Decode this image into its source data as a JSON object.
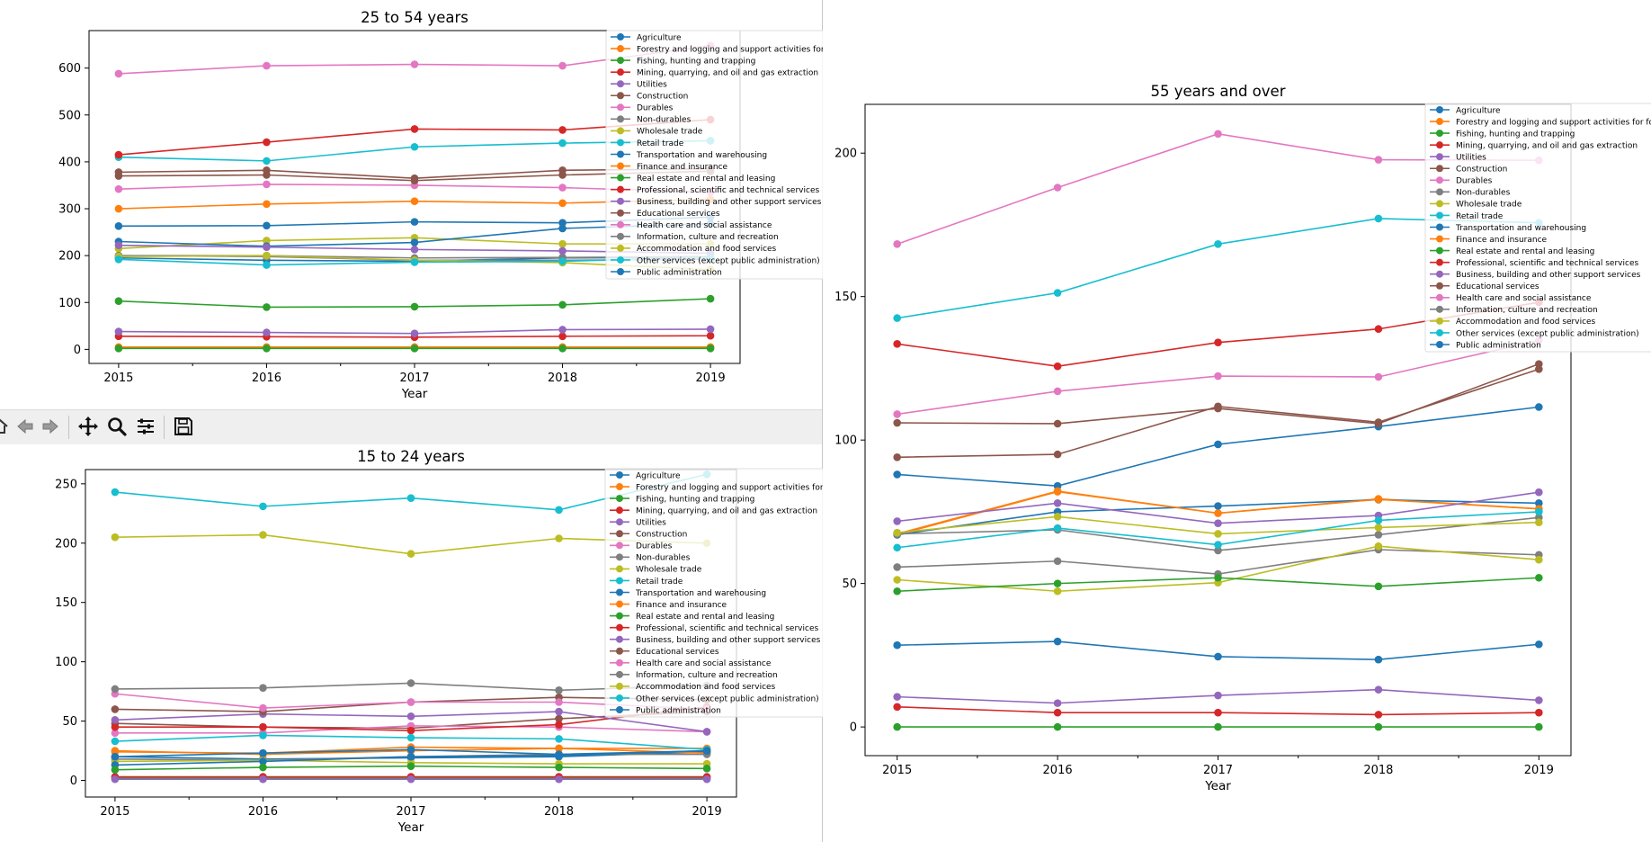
{
  "toolbar": {
    "buttons": [
      {
        "name": "home-button",
        "icon": "home-icon"
      },
      {
        "name": "back-button",
        "icon": "arrow-left-icon"
      },
      {
        "name": "forward-button",
        "icon": "arrow-right-icon"
      },
      {
        "name": "pan-button",
        "icon": "move-icon"
      },
      {
        "name": "zoom-button",
        "icon": "magnifier-icon"
      },
      {
        "name": "configure-subplots-button",
        "icon": "sliders-icon"
      },
      {
        "name": "save-button",
        "icon": "save-icon"
      }
    ]
  },
  "chart_data": [
    {
      "type": "line",
      "title": "25 to 54 years",
      "xlabel": "Year",
      "ylabel": "",
      "x": [
        2015,
        2016,
        2017,
        2018,
        2019
      ],
      "ylim": [
        -30,
        680
      ],
      "yticks": [
        0,
        100,
        200,
        300,
        400,
        500,
        600
      ],
      "grid": false,
      "legend_position": "top-right",
      "series": [
        {
          "name": "Agriculture",
          "color": "#1f77b4",
          "values": [
            195,
            190,
            188,
            195,
            196
          ]
        },
        {
          "name": "Forestry and logging and support activities for forestry",
          "color": "#ff7f0e",
          "values": [
            5,
            5,
            5,
            5,
            5
          ]
        },
        {
          "name": "Fishing, hunting and trapping",
          "color": "#2ca02c",
          "values": [
            2,
            2,
            2,
            2,
            2
          ]
        },
        {
          "name": "Mining, quarrying, and oil and gas extraction",
          "color": "#d62728",
          "values": [
            28,
            27,
            26,
            28,
            29
          ]
        },
        {
          "name": "Utilities",
          "color": "#9467bd",
          "values": [
            38,
            36,
            34,
            42,
            43
          ]
        },
        {
          "name": "Construction",
          "color": "#8c564b",
          "values": [
            378,
            382,
            365,
            382,
            385
          ]
        },
        {
          "name": "Durables",
          "color": "#e377c2",
          "values": [
            342,
            352,
            350,
            345,
            335
          ]
        },
        {
          "name": "Non-durables",
          "color": "#7f7f7f",
          "values": [
            200,
            200,
            195,
            196,
            198
          ]
        },
        {
          "name": "Wholesale trade",
          "color": "#bcbd22",
          "values": [
            215,
            232,
            238,
            225,
            225
          ]
        },
        {
          "name": "Retail trade",
          "color": "#17becf",
          "values": [
            410,
            402,
            432,
            440,
            445
          ]
        },
        {
          "name": "Transportation and warehousing",
          "color": "#1f77b4",
          "values": [
            230,
            220,
            228,
            258,
            268
          ]
        },
        {
          "name": "Finance and insurance",
          "color": "#ff7f0e",
          "values": [
            300,
            310,
            316,
            312,
            320
          ]
        },
        {
          "name": "Real estate and rental and leasing",
          "color": "#2ca02c",
          "values": [
            103,
            90,
            91,
            95,
            108
          ]
        },
        {
          "name": "Professional, scientific and technical services",
          "color": "#d62728",
          "values": [
            415,
            442,
            470,
            468,
            490
          ]
        },
        {
          "name": "Business, building and other support services",
          "color": "#9467bd",
          "values": [
            222,
            218,
            213,
            210,
            205
          ]
        },
        {
          "name": "Educational services",
          "color": "#8c564b",
          "values": [
            370,
            372,
            360,
            372,
            380
          ]
        },
        {
          "name": "Health care and social assistance",
          "color": "#e377c2",
          "values": [
            588,
            605,
            608,
            605,
            648
          ]
        },
        {
          "name": "Information, culture and recreation",
          "color": "#7f7f7f",
          "values": [
            200,
            198,
            190,
            190,
            192
          ]
        },
        {
          "name": "Accommodation and food services",
          "color": "#bcbd22",
          "values": [
            198,
            200,
            190,
            185,
            170
          ]
        },
        {
          "name": "Other services (except public administration)",
          "color": "#17becf",
          "values": [
            192,
            180,
            186,
            188,
            196
          ]
        },
        {
          "name": "Public administration",
          "color": "#1f77b4",
          "values": [
            263,
            264,
            272,
            270,
            282
          ]
        }
      ]
    },
    {
      "type": "line",
      "title": "15 to 24 years",
      "xlabel": "Year",
      "ylabel": "",
      "x": [
        2015,
        2016,
        2017,
        2018,
        2019
      ],
      "ylim": [
        -14,
        262
      ],
      "yticks": [
        0,
        50,
        100,
        150,
        200,
        250
      ],
      "grid": false,
      "legend_position": "top-right",
      "series": [
        {
          "name": "Agriculture",
          "color": "#1f77b4",
          "values": [
            20,
            18,
            19,
            20,
            24
          ]
        },
        {
          "name": "Forestry and logging and support activities for forestry",
          "color": "#ff7f0e",
          "values": [
            25,
            22,
            25,
            27,
            23
          ]
        },
        {
          "name": "Fishing, hunting and trapping",
          "color": "#2ca02c",
          "values": [
            2,
            2,
            2,
            2,
            2
          ]
        },
        {
          "name": "Mining, quarrying, and oil and gas extraction",
          "color": "#d62728",
          "values": [
            3,
            3,
            3,
            3,
            3
          ]
        },
        {
          "name": "Utilities",
          "color": "#9467bd",
          "values": [
            1,
            1,
            1,
            1,
            1
          ]
        },
        {
          "name": "Construction",
          "color": "#8c564b",
          "values": [
            48,
            45,
            44,
            52,
            58
          ]
        },
        {
          "name": "Durables",
          "color": "#e377c2",
          "values": [
            40,
            40,
            46,
            45,
            41
          ]
        },
        {
          "name": "Non-durables",
          "color": "#7f7f7f",
          "values": [
            18,
            17,
            20,
            22,
            22
          ]
        },
        {
          "name": "Wholesale trade",
          "color": "#bcbd22",
          "values": [
            16,
            17,
            15,
            14,
            14
          ]
        },
        {
          "name": "Retail trade",
          "color": "#17becf",
          "values": [
            243,
            231,
            238,
            228,
            258
          ]
        },
        {
          "name": "Transportation and warehousing",
          "color": "#1f77b4",
          "values": [
            13,
            16,
            20,
            21,
            25
          ]
        },
        {
          "name": "Finance and insurance",
          "color": "#ff7f0e",
          "values": [
            24,
            23,
            28,
            27,
            27
          ]
        },
        {
          "name": "Real estate and rental and leasing",
          "color": "#2ca02c",
          "values": [
            9,
            11,
            12,
            11,
            10
          ]
        },
        {
          "name": "Professional, scientific and technical services",
          "color": "#d62728",
          "values": [
            45,
            45,
            42,
            47,
            62
          ]
        },
        {
          "name": "Business, building and other support services",
          "color": "#9467bd",
          "values": [
            51,
            56,
            54,
            58,
            41
          ]
        },
        {
          "name": "Educational services",
          "color": "#8c564b",
          "values": [
            60,
            58,
            66,
            70,
            68
          ]
        },
        {
          "name": "Health care and social assistance",
          "color": "#e377c2",
          "values": [
            73,
            61,
            66,
            66,
            60
          ]
        },
        {
          "name": "Information, culture and recreation",
          "color": "#7f7f7f",
          "values": [
            77,
            78,
            82,
            76,
            80
          ]
        },
        {
          "name": "Accommodation and food services",
          "color": "#bcbd22",
          "values": [
            205,
            207,
            191,
            204,
            200
          ]
        },
        {
          "name": "Other services (except public administration)",
          "color": "#17becf",
          "values": [
            33,
            38,
            36,
            35,
            26
          ]
        },
        {
          "name": "Public administration",
          "color": "#1f77b4",
          "values": [
            20,
            23,
            26,
            22,
            25
          ]
        }
      ]
    },
    {
      "type": "line",
      "title": "55 years and over",
      "xlabel": "Year",
      "ylabel": "",
      "x": [
        2015,
        2016,
        2017,
        2018,
        2019
      ],
      "ylim": [
        -10,
        217
      ],
      "yticks": [
        0,
        50,
        100,
        150,
        200
      ],
      "grid": false,
      "legend_position": "top-right",
      "series": [
        {
          "name": "Agriculture",
          "color": "#1f77b4",
          "values": [
            88,
            84,
            98.5,
            104.7,
            111.5
          ]
        },
        {
          "name": "Forestry and logging and support activities for forestry",
          "color": "#ff7f0e",
          "values": [
            67,
            82,
            74.5,
            79.5,
            76
          ]
        },
        {
          "name": "Fishing, hunting and trapping",
          "color": "#2ca02c",
          "values": [
            0,
            0,
            0,
            0,
            0
          ]
        },
        {
          "name": "Mining, quarrying, and oil and gas extraction",
          "color": "#d62728",
          "values": [
            7,
            5,
            5,
            4.3,
            5
          ]
        },
        {
          "name": "Utilities",
          "color": "#9467bd",
          "values": [
            10.5,
            8.3,
            11,
            13,
            9.3
          ]
        },
        {
          "name": "Construction",
          "color": "#8c564b",
          "values": [
            106,
            105.7,
            111,
            105.7,
            126.5
          ]
        },
        {
          "name": "Durables",
          "color": "#e377c2",
          "values": [
            109,
            117,
            122.3,
            122,
            134.7
          ]
        },
        {
          "name": "Non-durables",
          "color": "#7f7f7f",
          "values": [
            55.7,
            57.8,
            53.3,
            61.8,
            60
          ]
        },
        {
          "name": "Wholesale trade",
          "color": "#bcbd22",
          "values": [
            51.3,
            47.3,
            50.3,
            63,
            58.3
          ]
        },
        {
          "name": "Retail trade",
          "color": "#17becf",
          "values": [
            142.5,
            151.3,
            168.3,
            177.2,
            175.7
          ]
        },
        {
          "name": "Transportation and warehousing",
          "color": "#1f77b4",
          "values": [
            67,
            75,
            77,
            79.2,
            78
          ]
        },
        {
          "name": "Finance and insurance",
          "color": "#ff7f0e",
          "values": [
            67.3,
            82.2,
            74.5,
            79.3,
            76
          ]
        },
        {
          "name": "Real estate and rental and leasing",
          "color": "#2ca02c",
          "values": [
            47.3,
            50,
            52,
            49,
            52
          ]
        },
        {
          "name": "Professional, scientific and technical services",
          "color": "#d62728",
          "values": [
            133.5,
            125.7,
            134,
            138.7,
            148
          ]
        },
        {
          "name": "Business, building and other support services",
          "color": "#9467bd",
          "values": [
            71.7,
            78,
            71,
            73.7,
            81.8
          ]
        },
        {
          "name": "Educational services",
          "color": "#8c564b",
          "values": [
            94,
            95,
            111.7,
            106.2,
            124.7
          ]
        },
        {
          "name": "Health care and social assistance",
          "color": "#e377c2",
          "values": [
            168.3,
            188,
            206.7,
            197.7,
            197.5
          ]
        },
        {
          "name": "Information, culture and recreation",
          "color": "#7f7f7f",
          "values": [
            67.3,
            68.7,
            61.5,
            67,
            73
          ]
        },
        {
          "name": "Accommodation and food services",
          "color": "#bcbd22",
          "values": [
            67.7,
            73.3,
            67.3,
            69.5,
            71.3
          ]
        },
        {
          "name": "Other services (except public administration)",
          "color": "#17becf",
          "values": [
            62.5,
            69.3,
            63.5,
            72,
            75
          ]
        },
        {
          "name": "Public administration",
          "color": "#1f77b4",
          "values": [
            28.5,
            29.8,
            24.5,
            23.5,
            28.8
          ]
        }
      ]
    }
  ]
}
